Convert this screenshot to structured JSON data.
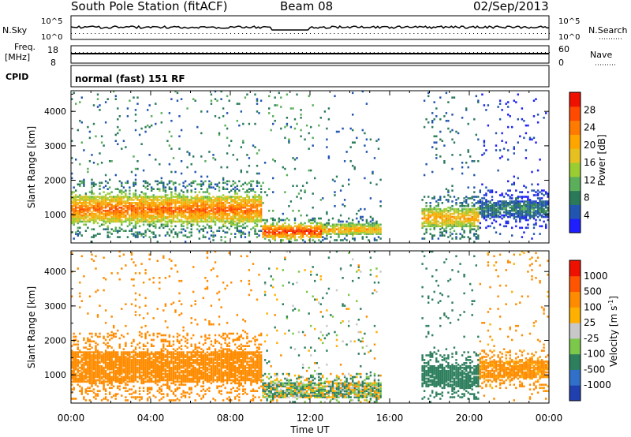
{
  "header": {
    "station": "South Pole Station (fitACF)",
    "beam": "Beam 08",
    "date": "02/Sep/2013"
  },
  "top_panels": {
    "nsky_label": "N.Sky",
    "nsky_ticks": [
      "10^5",
      "10^0"
    ],
    "nsearch_label": "N.Search",
    "nsearch_ticks": [
      "10^5",
      "10^0"
    ],
    "freq_label_1": "Freq.",
    "freq_label_2": "[MHz]",
    "freq_ticks": [
      "18",
      "8"
    ],
    "nave_label": "Nave",
    "nave_ticks": [
      "60",
      "0"
    ],
    "cpid_label": "CPID",
    "cpid_text": "normal (fast) 151 RF"
  },
  "chart_data": [
    {
      "type": "heatmap",
      "name": "power",
      "ylabel": "Slant Range [km]",
      "ylim": [
        180,
        4600
      ],
      "yticks": [
        "1000",
        "2000",
        "3000",
        "4000"
      ],
      "xlim": [
        "00:00",
        "24:00"
      ],
      "colorbar": {
        "label": "Power [dB]",
        "ticks": [
          "4",
          "8",
          "12",
          "16",
          "20",
          "24",
          "28"
        ],
        "colors": [
          "#1E1EFF",
          "#2255B0",
          "#2A7A5A",
          "#5BAF5A",
          "#9ACD32",
          "#E6C020",
          "#FFA500",
          "#FF7A00",
          "#FF4A00",
          "#EE1100"
        ]
      },
      "bands": [
        {
          "t0": 0.0,
          "t1": 9.5,
          "center": 1150,
          "halfwidth": 380,
          "peak": 24
        },
        {
          "t0": 9.5,
          "t1": 12.5,
          "center": 500,
          "halfwidth": 180,
          "peak": 28
        },
        {
          "t0": 12.5,
          "t1": 15.5,
          "center": 550,
          "halfwidth": 150,
          "peak": 20
        },
        {
          "t0": 17.5,
          "t1": 20.5,
          "center": 900,
          "halfwidth": 280,
          "peak": 20
        },
        {
          "t0": 20.5,
          "t1": 24.0,
          "center": 1150,
          "halfwidth": 250,
          "peak": 8
        }
      ]
    },
    {
      "type": "heatmap",
      "name": "velocity",
      "ylabel": "Slant Range [km]",
      "ylim": [
        180,
        4600
      ],
      "yticks": [
        "1000",
        "2000",
        "3000",
        "4000"
      ],
      "xticks": [
        "00:00",
        "04:00",
        "08:00",
        "12:00",
        "16:00",
        "20:00",
        "00:00"
      ],
      "xlabel": "Time UT",
      "colorbar": {
        "label": "Velocity [m s",
        "label_sup": "-1",
        "label_end": "]",
        "ticks": [
          "1000",
          "500",
          "100",
          "25",
          "-25",
          "-100",
          "-500",
          "-1000"
        ],
        "colors": [
          "#2040B0",
          "#3070C8",
          "#2E7F5E",
          "#7CC84A",
          "#C8C8C8",
          "#FFB000",
          "#FF8C00",
          "#FF5500",
          "#EE1100"
        ]
      },
      "bands": [
        {
          "t0": 0.0,
          "t1": 9.5,
          "center": 1200,
          "halfwidth": 450,
          "value": -300
        },
        {
          "t0": 9.5,
          "t1": 15.5,
          "center": 550,
          "halfwidth": 220,
          "value": 60
        },
        {
          "t0": 17.5,
          "t1": 20.5,
          "center": 950,
          "halfwidth": 320,
          "value": 300
        },
        {
          "t0": 20.5,
          "t1": 24.0,
          "center": 1150,
          "halfwidth": 260,
          "value": -250
        }
      ]
    }
  ]
}
